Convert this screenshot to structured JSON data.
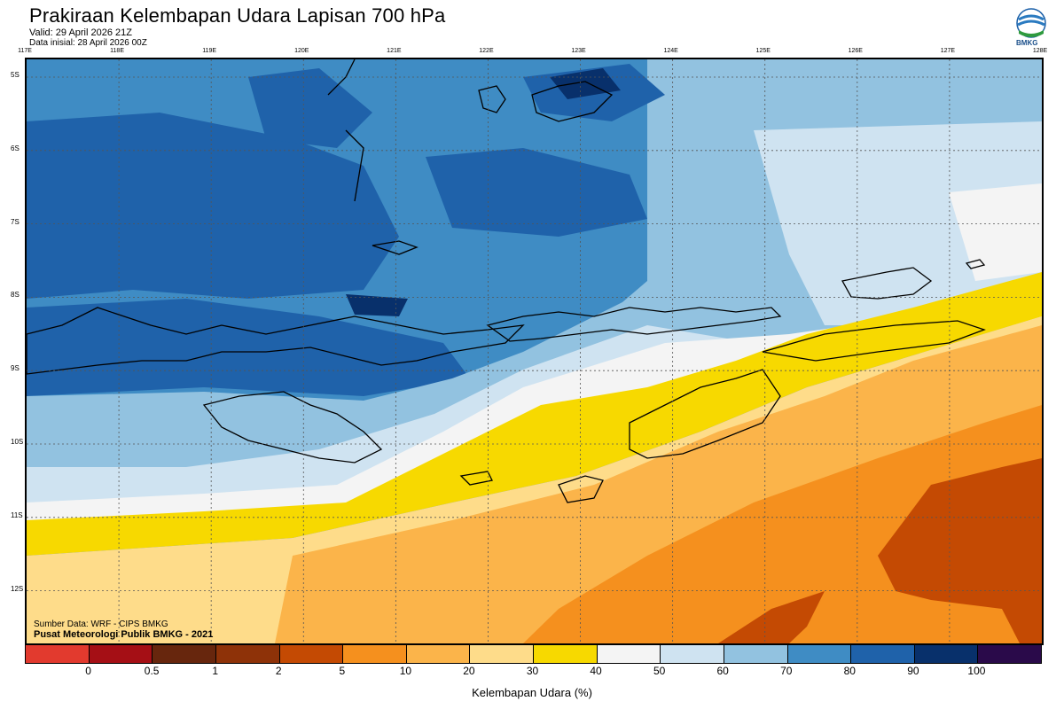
{
  "header": {
    "title": "Prakiraan Kelembapan Udara Lapisan 700 hPa",
    "valid": "Valid: 29 April 2026 21Z",
    "init": "Data inisial: 28 April 2026 00Z"
  },
  "logo": {
    "text": "BMKG"
  },
  "axes": {
    "longitudes": [
      "117E",
      "118E",
      "119E",
      "120E",
      "121E",
      "122E",
      "123E",
      "124E",
      "125E",
      "126E",
      "127E",
      "128E"
    ],
    "latitudes": [
      "5S",
      "6S",
      "7S",
      "8S",
      "9S",
      "10S",
      "11S",
      "12S"
    ]
  },
  "credits": {
    "line1": "Sumber Data: WRF - CIPS BMKG",
    "line2": "Pusat Meteorologi Publik BMKG - 2021"
  },
  "colorbar": {
    "colors": [
      "#e23a2e",
      "#a50f15",
      "#67260d",
      "#8e3208",
      "#c44a03",
      "#f5901e",
      "#fbb44a",
      "#fedc8a",
      "#f7d900",
      "#f4f4f4",
      "#cfe3f1",
      "#92c2e0",
      "#3f8cc4",
      "#1f62aa",
      "#08306b",
      "#2a0a4a"
    ],
    "ticks": [
      "0",
      "0.5",
      "1",
      "2",
      "5",
      "10",
      "20",
      "30",
      "40",
      "50",
      "60",
      "70",
      "80",
      "90",
      "100"
    ],
    "label": "Kelembapan Udara (%)"
  }
}
